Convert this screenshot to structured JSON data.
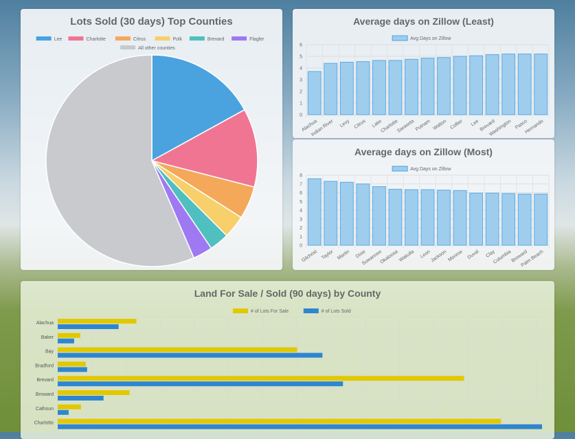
{
  "chart_data": [
    {
      "type": "pie",
      "title": "Lots Sold (30 days) Top Counties",
      "categories": [
        "Lee",
        "Charlotte",
        "Citrus",
        "Polk",
        "Brevard",
        "Flagler",
        "All other counties"
      ],
      "values": [
        17,
        12,
        5,
        3.5,
        3,
        3,
        56.5
      ],
      "colors": [
        "#4aa3df",
        "#f07593",
        "#f4a85a",
        "#f7cf6b",
        "#4fbfbf",
        "#9f79f2",
        "#c8cacd"
      ],
      "legend": "top"
    },
    {
      "type": "bar",
      "title": "Average days on Zillow (Least)",
      "categories": [
        "Alachua",
        "Indian River",
        "Levy",
        "Citrus",
        "Lake",
        "Charlotte",
        "Sarasota",
        "Putnam",
        "Walton",
        "Collier",
        "Lee",
        "Brevard",
        "Washington",
        "Pasco",
        "Hernando"
      ],
      "series": [
        {
          "name": "Avg Days on Zillow",
          "values": [
            3.7,
            4.4,
            4.5,
            4.55,
            4.65,
            4.65,
            4.75,
            4.85,
            4.9,
            5.0,
            5.05,
            5.15,
            5.2,
            5.2,
            5.2
          ]
        }
      ],
      "ylim": [
        0,
        6
      ],
      "yticks": [
        "0",
        "1",
        "2",
        "3",
        "4",
        "5",
        "6"
      ],
      "grid": true,
      "legend": "top"
    },
    {
      "type": "bar",
      "title": "Average days on Zillow (Most)",
      "categories": [
        "Gilchrist",
        "Taylor",
        "Martin",
        "Dixie",
        "Suwannee",
        "Okaloosa",
        "Wakulla",
        "Leon",
        "Jackson",
        "Monroe",
        "Duval",
        "Clay",
        "Columbia",
        "Broward",
        "Palm Beach"
      ],
      "series": [
        {
          "name": "Avg Days on Zillow",
          "values": [
            7.6,
            7.3,
            7.2,
            7.0,
            6.7,
            6.4,
            6.35,
            6.35,
            6.3,
            6.25,
            5.95,
            5.95,
            5.9,
            5.85,
            5.85
          ]
        }
      ],
      "ylim": [
        0,
        8
      ],
      "yticks": [
        "0",
        "1",
        "2",
        "3",
        "4",
        "5",
        "6",
        "7",
        "8"
      ],
      "grid": true,
      "legend": "top"
    },
    {
      "type": "bar",
      "orientation": "horizontal",
      "title": "Land For Sale / Sold (90 days) by County",
      "categories": [
        "Alachua",
        "Baker",
        "Bay",
        "Bradford",
        "Brevard",
        "Broward",
        "Calhoun",
        "Charlotte"
      ],
      "series": [
        {
          "name": "# of Lots For Sale",
          "values": [
            115,
            33,
            350,
            41,
            594,
            105,
            34,
            648
          ]
        },
        {
          "name": "# of Lots Sold",
          "values": [
            89,
            24,
            387,
            43,
            417,
            67,
            16,
            708
          ]
        }
      ],
      "colors": [
        "#e2c800",
        "#2e86d0"
      ],
      "xlim": [
        0,
        720
      ],
      "grid": true,
      "legend": "top"
    }
  ]
}
